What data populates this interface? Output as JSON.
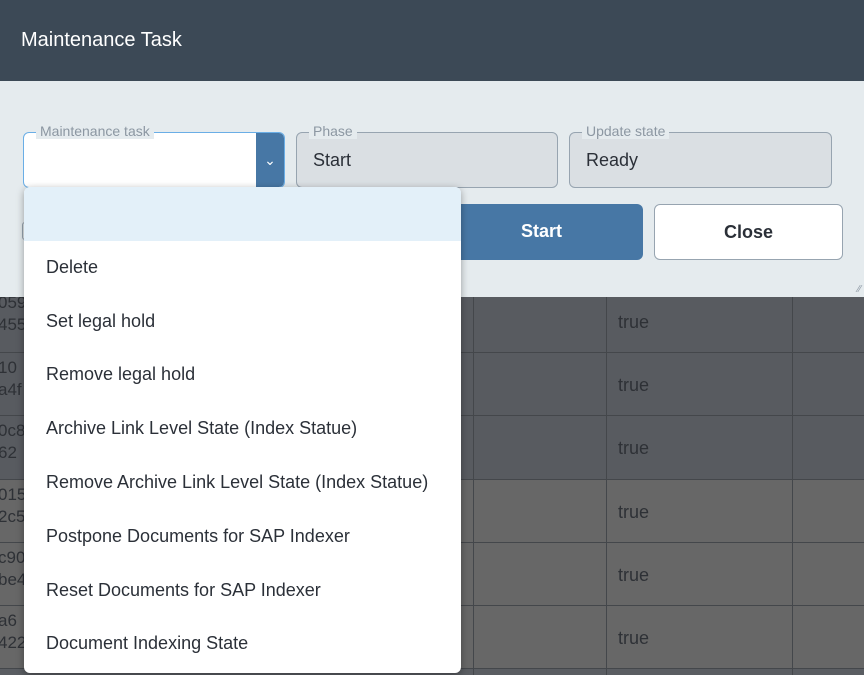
{
  "dialog": {
    "title": "Maintenance Task",
    "fields": {
      "task": {
        "label": "Maintenance task",
        "value": ""
      },
      "phase": {
        "label": "Phase",
        "value": "Start"
      },
      "update": {
        "label": "Update state",
        "value": "Ready"
      }
    },
    "buttons": {
      "start": "Start",
      "close": "Close"
    }
  },
  "dropdown": {
    "options": [
      "",
      "Delete",
      "Set legal hold",
      "Remove legal hold",
      "Archive Link Level State (Index Statue)",
      "Remove Archive Link Level State (Index Statue)",
      "Postpone Documents for SAP Indexer",
      "Reset Documents for SAP Indexer",
      "Document Indexing State"
    ]
  },
  "table": {
    "rows": [
      {
        "id1": "059",
        "id2": "455",
        "flag": "true"
      },
      {
        "id1": "10",
        "id2": "a4f",
        "flag": "true"
      },
      {
        "id1": "0c8",
        "id2": "62",
        "flag": "true"
      },
      {
        "id1": "015",
        "id2": "2c5",
        "flag": "true"
      },
      {
        "id1": "c90",
        "id2": "be4",
        "flag": "true"
      },
      {
        "id1": "a6",
        "id2": "422",
        "flag": "true"
      }
    ]
  }
}
